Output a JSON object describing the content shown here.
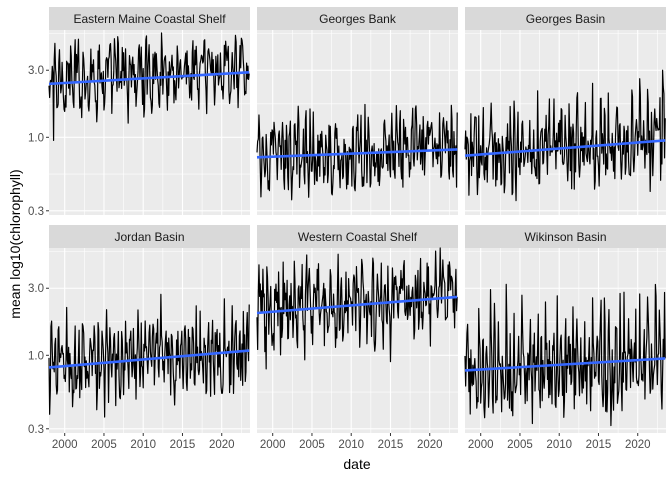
{
  "chart_data": {
    "type": "line",
    "xlabel": "date",
    "ylabel": "mean log10(chlorophyll)",
    "y_scale": "log10",
    "x_range_years": [
      1998,
      2023.6
    ],
    "ylim": [
      0.28,
      5.8
    ],
    "y_ticks": [
      0.3,
      1.0,
      3.0
    ],
    "y_tick_labels": [
      "0.3 -",
      "1.0 -",
      "3.0 -"
    ],
    "x_ticks": [
      2000,
      2005,
      2010,
      2015,
      2020
    ],
    "x_tick_labels": [
      "2000",
      "2005",
      "2010",
      "2015",
      "2020"
    ],
    "grid": true,
    "legend": "none",
    "layout": "facet grid 2 rows x 3 columns, shared axes",
    "colors": {
      "panel_background": "#ebebeb",
      "strip_background": "#d9d9d9",
      "gridline": "#ffffff",
      "series_line": "#000000",
      "trend_line": "#3366ff"
    },
    "monthly_series_start": "1998-01",
    "panels": [
      {
        "title": "Eastern Maine Coastal Shelf",
        "trend": {
          "start": 2.4,
          "end": 2.9
        },
        "seasonal_mean_by_month": [
          1.9,
          1.8,
          2.0,
          2.6,
          3.4,
          3.1,
          2.8,
          2.6,
          2.7,
          3.3,
          2.9,
          2.2
        ],
        "noise": 0.3,
        "min_point": {
          "date": "1998-08",
          "value": 0.95
        },
        "max_point": {
          "date": "2006-10",
          "value": 5.2
        }
      },
      {
        "title": "Georges Bank",
        "trend": {
          "start": 0.72,
          "end": 0.82
        },
        "seasonal_mean_by_month": [
          0.7,
          0.7,
          0.9,
          1.05,
          0.75,
          0.55,
          0.52,
          0.55,
          0.75,
          0.95,
          0.9,
          0.75
        ],
        "noise": 0.35,
        "end_spike": {
          "date": "2023-07",
          "value": 1.5
        }
      },
      {
        "title": "Georges Basin",
        "trend": {
          "start": 0.74,
          "end": 0.95
        },
        "seasonal_mean_by_month": [
          0.62,
          0.62,
          0.8,
          1.3,
          1.1,
          0.75,
          0.62,
          0.6,
          0.75,
          1.0,
          0.85,
          0.65
        ],
        "noise": 0.4,
        "end_spike": {
          "date": "2023-03",
          "value": 3.0
        }
      },
      {
        "title": "Jordan Basin",
        "trend": {
          "start": 0.82,
          "end": 1.08
        },
        "seasonal_mean_by_month": [
          0.62,
          0.62,
          0.8,
          1.4,
          1.2,
          0.85,
          0.7,
          0.7,
          0.85,
          1.2,
          1.0,
          0.7
        ],
        "noise": 0.4,
        "end_spike": {
          "date": "2023-07",
          "value": 2.3
        }
      },
      {
        "title": "Western Coastal Shelf",
        "trend": {
          "start": 2.0,
          "end": 2.6
        },
        "seasonal_mean_by_month": [
          1.4,
          1.4,
          1.8,
          2.6,
          3.0,
          2.4,
          2.0,
          2.0,
          2.4,
          3.0,
          2.6,
          1.8
        ],
        "noise": 0.4,
        "min_point": {
          "date": "1999-03",
          "value": 0.8
        }
      },
      {
        "title": "Wikinson Basin",
        "trend": {
          "start": 0.78,
          "end": 0.95
        },
        "seasonal_mean_by_month": [
          0.6,
          0.6,
          0.75,
          1.6,
          1.1,
          0.7,
          0.6,
          0.55,
          0.7,
          1.2,
          0.9,
          0.65
        ],
        "noise": 0.45,
        "end_spike": {
          "date": "2023-06",
          "value": 2.8
        }
      }
    ]
  }
}
